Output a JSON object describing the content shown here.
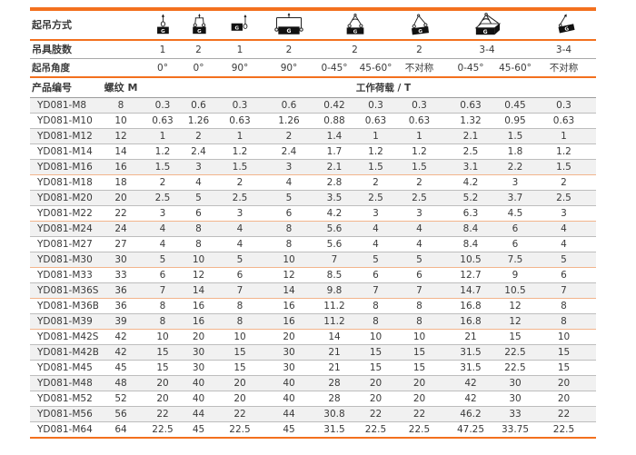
{
  "header": {
    "row1_label": "起吊方式",
    "row2_label": "吊具肢数",
    "row3_label": "起吊角度",
    "product_label": "产品编号",
    "thread_label": "螺纹 M",
    "load_label": "工作荷载 / T",
    "icons": [
      "single-leg-vertical-lift-icon",
      "two-leg-vertical-lift-icon",
      "single-leg-side-lift-icon",
      "two-leg-side-lift-icon",
      "two-leg-angle-lift-icon",
      "two-leg-asymmetric-lift-icon",
      "multi-leg-angle-lift-icon",
      "multi-leg-asymmetric-lift-icon"
    ],
    "legs": [
      "1",
      "2",
      "1",
      "2",
      "2",
      "2",
      "3-4",
      "3-4"
    ],
    "angles": [
      "0°",
      "0°",
      "90°",
      "90°",
      "0-45°",
      "45-60°",
      "不对称",
      "0-45°",
      "45-60°",
      "不对称"
    ]
  },
  "colors": {
    "accent_orange": "#f3701e",
    "separator_peach": "#f2b48c",
    "row_stripe": "#f1f1f1",
    "text": "#3a3a3a"
  },
  "rows": [
    {
      "product": "YD081-M8",
      "thread": "8",
      "loads": [
        "0.3",
        "0.6",
        "0.3",
        "0.6",
        "0.42",
        "0.3",
        "0.3",
        "0.63",
        "0.45",
        "0.3"
      ],
      "group_end": false
    },
    {
      "product": "YD081-M10",
      "thread": "10",
      "loads": [
        "0.63",
        "1.26",
        "0.63",
        "1.26",
        "0.88",
        "0.63",
        "0.63",
        "1.32",
        "0.95",
        "0.63"
      ],
      "group_end": false
    },
    {
      "product": "YD081-M12",
      "thread": "12",
      "loads": [
        "1",
        "2",
        "1",
        "2",
        "1.4",
        "1",
        "1",
        "2.1",
        "1.5",
        "1"
      ],
      "group_end": false
    },
    {
      "product": "YD081-M14",
      "thread": "14",
      "loads": [
        "1.2",
        "2.4",
        "1.2",
        "2.4",
        "1.7",
        "1.2",
        "1.2",
        "2.5",
        "1.8",
        "1.2"
      ],
      "group_end": false
    },
    {
      "product": "YD081-M16",
      "thread": "16",
      "loads": [
        "1.5",
        "3",
        "1.5",
        "3",
        "2.1",
        "1.5",
        "1.5",
        "3.1",
        "2.2",
        "1.5"
      ],
      "group_end": true
    },
    {
      "product": "YD081-M18",
      "thread": "18",
      "loads": [
        "2",
        "4",
        "2",
        "4",
        "2.8",
        "2",
        "2",
        "4.2",
        "3",
        "2"
      ],
      "group_end": false
    },
    {
      "product": "YD081-M20",
      "thread": "20",
      "loads": [
        "2.5",
        "5",
        "2.5",
        "5",
        "3.5",
        "2.5",
        "2.5",
        "5.2",
        "3.7",
        "2.5"
      ],
      "group_end": false
    },
    {
      "product": "YD081-M22",
      "thread": "22",
      "loads": [
        "3",
        "6",
        "3",
        "6",
        "4.2",
        "3",
        "3",
        "6.3",
        "4.5",
        "3"
      ],
      "group_end": true
    },
    {
      "product": "YD081-M24",
      "thread": "24",
      "loads": [
        "4",
        "8",
        "4",
        "8",
        "5.6",
        "4",
        "4",
        "8.4",
        "6",
        "4"
      ],
      "group_end": false
    },
    {
      "product": "YD081-M27",
      "thread": "27",
      "loads": [
        "4",
        "8",
        "4",
        "8",
        "5.6",
        "4",
        "4",
        "8.4",
        "6",
        "4"
      ],
      "group_end": false
    },
    {
      "product": "YD081-M30",
      "thread": "30",
      "loads": [
        "5",
        "10",
        "5",
        "10",
        "7",
        "5",
        "5",
        "10.5",
        "7.5",
        "5"
      ],
      "group_end": true
    },
    {
      "product": "YD081-M33",
      "thread": "33",
      "loads": [
        "6",
        "12",
        "6",
        "12",
        "8.5",
        "6",
        "6",
        "12.7",
        "9",
        "6"
      ],
      "group_end": false
    },
    {
      "product": "YD081-M36S",
      "thread": "36",
      "loads": [
        "7",
        "14",
        "7",
        "14",
        "9.8",
        "7",
        "7",
        "14.7",
        "10.5",
        "7"
      ],
      "group_end": true
    },
    {
      "product": "YD081-M36B",
      "thread": "36",
      "loads": [
        "8",
        "16",
        "8",
        "16",
        "11.2",
        "8",
        "8",
        "16.8",
        "12",
        "8"
      ],
      "group_end": false
    },
    {
      "product": "YD081-M39",
      "thread": "39",
      "loads": [
        "8",
        "16",
        "8",
        "16",
        "11.2",
        "8",
        "8",
        "16.8",
        "12",
        "8"
      ],
      "group_end": true
    },
    {
      "product": "YD081-M42S",
      "thread": "42",
      "loads": [
        "10",
        "20",
        "10",
        "20",
        "14",
        "10",
        "10",
        "21",
        "15",
        "10"
      ],
      "group_end": false
    },
    {
      "product": "YD081-M42B",
      "thread": "42",
      "loads": [
        "15",
        "30",
        "15",
        "30",
        "21",
        "15",
        "15",
        "31.5",
        "22.5",
        "15"
      ],
      "group_end": false
    },
    {
      "product": "YD081-M45",
      "thread": "45",
      "loads": [
        "15",
        "30",
        "15",
        "30",
        "21",
        "15",
        "15",
        "31.5",
        "22.5",
        "15"
      ],
      "group_end": false
    },
    {
      "product": "YD081-M48",
      "thread": "48",
      "loads": [
        "20",
        "40",
        "20",
        "40",
        "28",
        "20",
        "20",
        "42",
        "30",
        "20"
      ],
      "group_end": false
    },
    {
      "product": "YD081-M52",
      "thread": "52",
      "loads": [
        "20",
        "40",
        "20",
        "40",
        "28",
        "20",
        "20",
        "42",
        "30",
        "20"
      ],
      "group_end": false
    },
    {
      "product": "YD081-M56",
      "thread": "56",
      "loads": [
        "22",
        "44",
        "22",
        "44",
        "30.8",
        "22",
        "22",
        "46.2",
        "33",
        "22"
      ],
      "group_end": false
    },
    {
      "product": "YD081-M64",
      "thread": "64",
      "loads": [
        "22.5",
        "45",
        "22.5",
        "45",
        "31.5",
        "22.5",
        "22.5",
        "47.25",
        "33.75",
        "22.5"
      ],
      "group_end": false
    }
  ]
}
